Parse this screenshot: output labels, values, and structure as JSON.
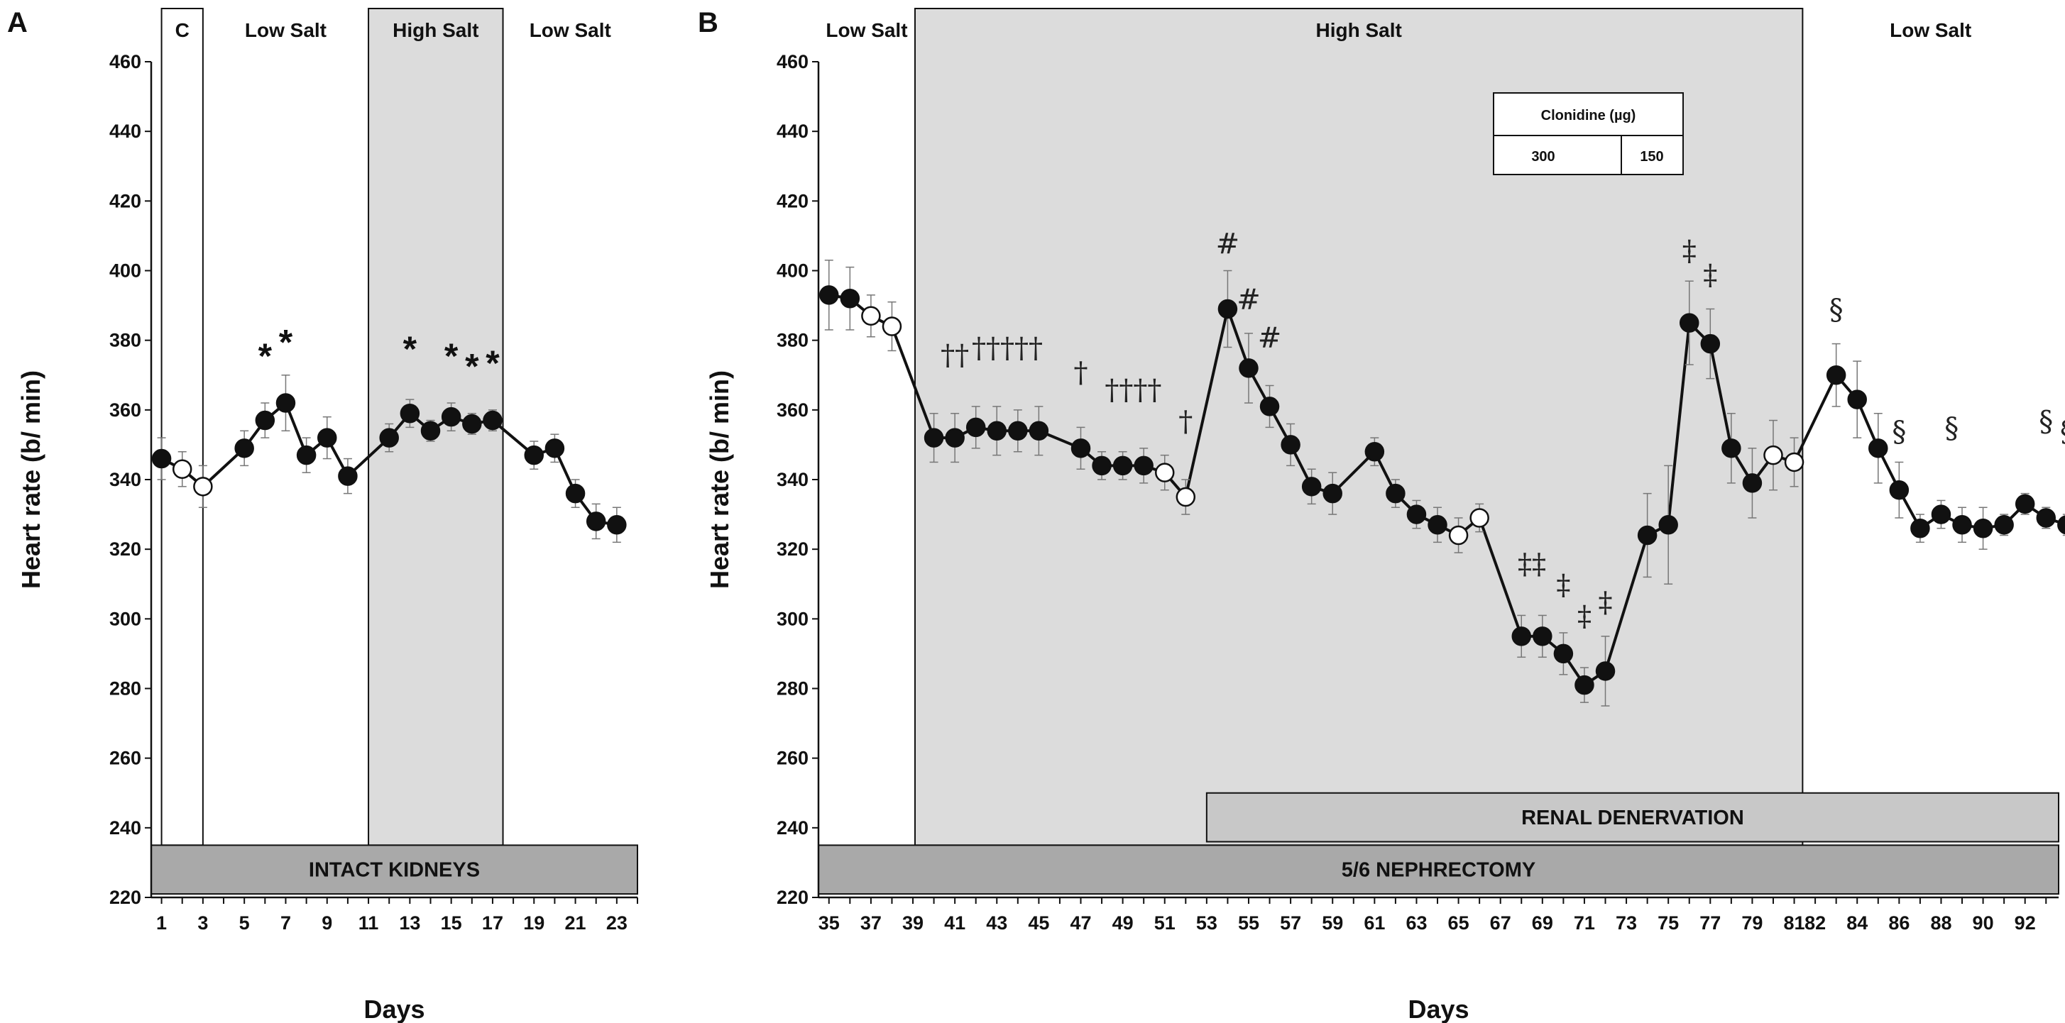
{
  "chart_data": [
    {
      "panel": "A",
      "type": "line",
      "ylabel": "Heart rate (b/ min)",
      "xlabel": "Days",
      "ylim": [
        220,
        460
      ],
      "yticks": [
        220,
        240,
        260,
        280,
        300,
        320,
        340,
        360,
        380,
        400,
        420,
        440,
        460
      ],
      "xlim": [
        0.5,
        24
      ],
      "xticks": [
        "1",
        "3",
        "5",
        "7",
        "9",
        "11",
        "13",
        "15",
        "17",
        "19",
        "21",
        "23"
      ],
      "xtick_values": [
        1,
        3,
        5,
        7,
        9,
        11,
        13,
        15,
        17,
        19,
        21,
        23
      ],
      "phases": [
        {
          "label": "C",
          "x0": 1,
          "x1": 3,
          "shade": "white",
          "boxed": true
        },
        {
          "label": "Low Salt",
          "x0": 3,
          "x1": 11,
          "shade": "none",
          "boxed": false
        },
        {
          "label": "High Salt",
          "x0": 11,
          "x1": 17.5,
          "shade": "grey",
          "boxed": true
        },
        {
          "label": "Low Salt",
          "x0": 17.5,
          "x1": 24,
          "shade": "none",
          "boxed": false
        }
      ],
      "bars": [
        {
          "label": "INTACT KIDNEYS",
          "x0": 0.5,
          "x1": 24,
          "y0": 221,
          "y1": 235
        }
      ],
      "points": [
        {
          "x": 1,
          "y": 346,
          "err": 6,
          "open": false
        },
        {
          "x": 2,
          "y": 343,
          "err": 5,
          "open": true
        },
        {
          "x": 3,
          "y": 338,
          "err": 6,
          "open": true
        },
        {
          "x": 5,
          "y": 349,
          "err": 5,
          "open": false
        },
        {
          "x": 6,
          "y": 357,
          "err": 5,
          "open": false
        },
        {
          "x": 7,
          "y": 362,
          "err": 8,
          "open": false
        },
        {
          "x": 8,
          "y": 347,
          "err": 5,
          "open": false
        },
        {
          "x": 9,
          "y": 352,
          "err": 6,
          "open": false
        },
        {
          "x": 10,
          "y": 341,
          "err": 5,
          "open": false
        },
        {
          "x": 12,
          "y": 352,
          "err": 4,
          "open": false
        },
        {
          "x": 13,
          "y": 359,
          "err": 4,
          "open": false
        },
        {
          "x": 14,
          "y": 354,
          "err": 3,
          "open": false
        },
        {
          "x": 15,
          "y": 358,
          "err": 4,
          "open": false
        },
        {
          "x": 16,
          "y": 356,
          "err": 3,
          "open": false
        },
        {
          "x": 17,
          "y": 357,
          "err": 3,
          "open": false
        },
        {
          "x": 19,
          "y": 347,
          "err": 4,
          "open": false
        },
        {
          "x": 20,
          "y": 349,
          "err": 4,
          "open": false
        },
        {
          "x": 21,
          "y": 336,
          "err": 4,
          "open": false
        },
        {
          "x": 22,
          "y": 328,
          "err": 5,
          "open": false
        },
        {
          "x": 23,
          "y": 327,
          "err": 5,
          "open": false
        }
      ],
      "annotations": [
        {
          "text": "*",
          "x": 6,
          "y": 372,
          "kind": "star"
        },
        {
          "text": "*",
          "x": 7,
          "y": 376,
          "kind": "star"
        },
        {
          "text": "*",
          "x": 13,
          "y": 374,
          "kind": "star"
        },
        {
          "text": "*",
          "x": 15,
          "y": 372,
          "kind": "star"
        },
        {
          "text": "*",
          "x": 16,
          "y": 369,
          "kind": "star"
        },
        {
          "text": "*",
          "x": 17,
          "y": 370,
          "kind": "star"
        }
      ],
      "legend": null
    },
    {
      "panel": "B",
      "type": "line",
      "ylabel": "Heart rate (b/ min)",
      "xlabel": "Days",
      "ylim": [
        220,
        460
      ],
      "yticks": [
        220,
        240,
        260,
        280,
        300,
        320,
        340,
        360,
        380,
        400,
        420,
        440,
        460
      ],
      "xlim": [
        34.5,
        93.6
      ],
      "xticks": [
        "35",
        "37",
        "39",
        "41",
        "43",
        "45",
        "47",
        "49",
        "51",
        "53",
        "55",
        "57",
        "59",
        "61",
        "63",
        "65",
        "67",
        "69",
        "71",
        "73",
        "75",
        "77",
        "79",
        "81",
        "82",
        "84",
        "86",
        "88",
        "90",
        "92"
      ],
      "xtick_values": [
        35,
        37,
        39,
        41,
        43,
        45,
        47,
        49,
        51,
        53,
        55,
        57,
        59,
        61,
        63,
        65,
        67,
        69,
        71,
        73,
        75,
        77,
        79,
        81,
        82,
        84,
        86,
        88,
        90,
        92
      ],
      "phases": [
        {
          "label": "Low Salt",
          "x0": 34.5,
          "x1": 39.1,
          "shade": "none",
          "boxed": false
        },
        {
          "label": "High Salt",
          "x0": 39.1,
          "x1": 81.4,
          "shade": "grey",
          "boxed": true
        },
        {
          "label": "Low Salt",
          "x0": 81.4,
          "x1": 93.6,
          "shade": "none",
          "boxed": false
        }
      ],
      "bars": [
        {
          "label": "RENAL DENERVATION",
          "x0": 53,
          "x1": 93.6,
          "y0": 236,
          "y1": 250
        },
        {
          "label": "5/6 NEPHRECTOMY",
          "x0": 34.5,
          "x1": 93.6,
          "y0": 221,
          "y1": 235
        }
      ],
      "points": [
        {
          "x": 35,
          "y": 393,
          "err": 10,
          "open": false
        },
        {
          "x": 36,
          "y": 392,
          "err": 9,
          "open": false
        },
        {
          "x": 37,
          "y": 387,
          "err": 6,
          "open": true
        },
        {
          "x": 38,
          "y": 384,
          "err": 7,
          "open": true
        },
        {
          "x": 40,
          "y": 352,
          "err": 7,
          "open": false
        },
        {
          "x": 41,
          "y": 352,
          "err": 7,
          "open": false
        },
        {
          "x": 42,
          "y": 355,
          "err": 6,
          "open": false
        },
        {
          "x": 43,
          "y": 354,
          "err": 7,
          "open": false
        },
        {
          "x": 44,
          "y": 354,
          "err": 6,
          "open": false
        },
        {
          "x": 45,
          "y": 354,
          "err": 7,
          "open": false
        },
        {
          "x": 47,
          "y": 349,
          "err": 6,
          "open": false
        },
        {
          "x": 48,
          "y": 344,
          "err": 4,
          "open": false
        },
        {
          "x": 49,
          "y": 344,
          "err": 4,
          "open": false
        },
        {
          "x": 50,
          "y": 344,
          "err": 5,
          "open": false
        },
        {
          "x": 51,
          "y": 342,
          "err": 5,
          "open": true
        },
        {
          "x": 52,
          "y": 335,
          "err": 5,
          "open": true
        },
        {
          "x": 54,
          "y": 389,
          "err": 11,
          "open": false
        },
        {
          "x": 55,
          "y": 372,
          "err": 10,
          "open": false
        },
        {
          "x": 56,
          "y": 361,
          "err": 6,
          "open": false
        },
        {
          "x": 57,
          "y": 350,
          "err": 6,
          "open": false
        },
        {
          "x": 58,
          "y": 338,
          "err": 5,
          "open": false
        },
        {
          "x": 59,
          "y": 336,
          "err": 6,
          "open": false
        },
        {
          "x": 61,
          "y": 348,
          "err": 4,
          "open": false
        },
        {
          "x": 62,
          "y": 336,
          "err": 4,
          "open": false
        },
        {
          "x": 63,
          "y": 330,
          "err": 4,
          "open": false
        },
        {
          "x": 64,
          "y": 327,
          "err": 5,
          "open": false
        },
        {
          "x": 65,
          "y": 324,
          "err": 5,
          "open": true
        },
        {
          "x": 66,
          "y": 329,
          "err": 4,
          "open": true
        },
        {
          "x": 68,
          "y": 295,
          "err": 6,
          "open": false
        },
        {
          "x": 69,
          "y": 295,
          "err": 6,
          "open": false
        },
        {
          "x": 70,
          "y": 290,
          "err": 6,
          "open": false
        },
        {
          "x": 71,
          "y": 281,
          "err": 5,
          "open": false
        },
        {
          "x": 72,
          "y": 285,
          "err": 10,
          "open": false
        },
        {
          "x": 74,
          "y": 324,
          "err": 12,
          "open": false
        },
        {
          "x": 75,
          "y": 327,
          "err": 17,
          "open": false
        },
        {
          "x": 76,
          "y": 385,
          "err": 12,
          "open": false
        },
        {
          "x": 77,
          "y": 379,
          "err": 10,
          "open": false
        },
        {
          "x": 78,
          "y": 349,
          "err": 10,
          "open": false
        },
        {
          "x": 79,
          "y": 339,
          "err": 10,
          "open": false
        },
        {
          "x": 80,
          "y": 347,
          "err": 10,
          "open": true
        },
        {
          "x": 81,
          "y": 345,
          "err": 7,
          "open": true
        },
        {
          "x": 83,
          "y": 370,
          "err": 9,
          "open": false
        },
        {
          "x": 84,
          "y": 363,
          "err": 11,
          "open": false
        },
        {
          "x": 85,
          "y": 349,
          "err": 10,
          "open": false
        },
        {
          "x": 86,
          "y": 337,
          "err": 8,
          "open": false
        },
        {
          "x": 87,
          "y": 326,
          "err": 4,
          "open": false
        },
        {
          "x": 88,
          "y": 330,
          "err": 4,
          "open": false
        },
        {
          "x": 89,
          "y": 327,
          "err": 5,
          "open": false
        },
        {
          "x": 90,
          "y": 326,
          "err": 6,
          "open": false
        },
        {
          "x": 91,
          "y": 327,
          "err": 3,
          "open": false
        },
        {
          "x": 92,
          "y": 333,
          "err": 3,
          "open": false
        },
        {
          "x": 93,
          "y": 329,
          "err": 3,
          "open": false
        },
        {
          "x": 94,
          "y": 327,
          "err": 3,
          "open": false
        }
      ],
      "annotations": [
        {
          "text": "††",
          "x": 41,
          "y": 373,
          "kind": "dagger"
        },
        {
          "text": "†††††",
          "x": 43.5,
          "y": 375,
          "kind": "dagger"
        },
        {
          "text": "†",
          "x": 47,
          "y": 368,
          "kind": "dagger"
        },
        {
          "text": "††††",
          "x": 49.5,
          "y": 363,
          "kind": "dagger"
        },
        {
          "text": "†",
          "x": 52,
          "y": 354,
          "kind": "dagger"
        },
        {
          "text": "#",
          "x": 54,
          "y": 405,
          "kind": "hash"
        },
        {
          "text": "#",
          "x": 55,
          "y": 389,
          "kind": "hash"
        },
        {
          "text": "#",
          "x": 56,
          "y": 378,
          "kind": "hash"
        },
        {
          "text": "‡‡",
          "x": 68.5,
          "y": 313,
          "kind": "ddagger"
        },
        {
          "text": "‡",
          "x": 70,
          "y": 307,
          "kind": "ddagger"
        },
        {
          "text": "‡",
          "x": 71,
          "y": 298,
          "kind": "ddagger"
        },
        {
          "text": "‡",
          "x": 72,
          "y": 302,
          "kind": "ddagger"
        },
        {
          "text": "‡",
          "x": 76,
          "y": 403,
          "kind": "ddagger"
        },
        {
          "text": "‡",
          "x": 77,
          "y": 396,
          "kind": "ddagger"
        },
        {
          "text": "§",
          "x": 83,
          "y": 386,
          "kind": "section"
        },
        {
          "text": "§",
          "x": 86,
          "y": 351,
          "kind": "section"
        },
        {
          "text": "§",
          "x": 88.5,
          "y": 352,
          "kind": "section"
        },
        {
          "text": "§",
          "x": 93,
          "y": 354,
          "kind": "section"
        },
        {
          "text": "§",
          "x": 94,
          "y": 351,
          "kind": "section"
        }
      ],
      "legend": {
        "title": "Clonidine (µg)",
        "cells": [
          "300",
          "150"
        ]
      }
    }
  ]
}
